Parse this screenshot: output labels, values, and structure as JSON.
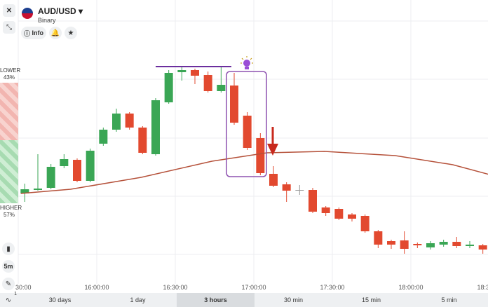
{
  "header": {
    "symbol": "AUD/USD",
    "mode": "Binary",
    "info": "Info"
  },
  "sentiment": {
    "lower_label": "LOWER",
    "lower_value": "43%",
    "higher_label": "HIGHER",
    "higher_value": "57%"
  },
  "toolbar": {
    "timeframe": "5m",
    "badge": "1"
  },
  "periods": [
    "30 days",
    "1 day",
    "3 hours",
    "30 min",
    "15 min",
    "5 min"
  ],
  "active_period": 2,
  "chart_data": {
    "type": "candlestick",
    "xlim": [
      930,
      1110
    ],
    "ylim": [
      0,
      380
    ],
    "xticks": [
      {
        "value": 930,
        "label": "30:00"
      },
      {
        "value": 960,
        "label": "16:00:00"
      },
      {
        "value": 990,
        "label": "16:30:00"
      },
      {
        "value": 1020,
        "label": "17:00:00"
      },
      {
        "value": 1050,
        "label": "17:30:00"
      },
      {
        "value": 1080,
        "label": "18:00:00"
      },
      {
        "value": 1110,
        "label": "18:3"
      }
    ],
    "grid": true,
    "up_color": "#3aa655",
    "down_color": "#e2492f",
    "candles": {
      "x": [
        932.5,
        937.5,
        942.5,
        947.5,
        952.5,
        957.5,
        962.5,
        967.5,
        972.5,
        977.5,
        982.5,
        987.5,
        992.5,
        997.5,
        1002.5,
        1007.5,
        1012.5,
        1017.5,
        1022.5,
        1027.5,
        1032.5,
        1037.5,
        1042.5,
        1047.5,
        1052.5,
        1057.5,
        1062.5,
        1067.5,
        1072.5,
        1077.5,
        1082.5,
        1087.5,
        1092.5,
        1097.5,
        1102.5,
        1107.5
      ],
      "open": [
        124,
        129,
        132,
        163,
        172,
        142,
        195,
        215,
        238,
        218,
        180,
        254,
        297,
        300,
        293,
        270,
        278,
        235,
        203,
        152,
        137,
        129,
        129,
        104,
        102,
        94,
        92,
        70,
        56,
        57,
        52,
        47,
        51,
        55,
        49,
        50
      ],
      "high": [
        138,
        180,
        166,
        180,
        174,
        188,
        218,
        245,
        240,
        220,
        260,
        300,
        304,
        302,
        298,
        305,
        296,
        240,
        210,
        163,
        140,
        136,
        132,
        106,
        104,
        96,
        94,
        72,
        58,
        70,
        54,
        56,
        58,
        62,
        56,
        52
      ],
      "low": [
        112,
        128,
        130,
        160,
        140,
        140,
        192,
        212,
        215,
        180,
        178,
        252,
        285,
        280,
        268,
        268,
        222,
        186,
        150,
        133,
        112,
        122,
        96,
        92,
        86,
        84,
        68,
        46,
        45,
        38,
        46,
        44,
        48,
        46,
        46,
        38
      ],
      "close": [
        130,
        131,
        162,
        173,
        142,
        185,
        215,
        238,
        218,
        182,
        257,
        296,
        300,
        292,
        270,
        279,
        225,
        189,
        153,
        135,
        128,
        129,
        98,
        96,
        88,
        88,
        70,
        51,
        51,
        45,
        50,
        53,
        55,
        49,
        51,
        44
      ]
    },
    "ma": {
      "color": "#b5513a",
      "x": [
        931,
        950,
        977,
        1004,
        1025,
        1047,
        1074,
        1096,
        1111
      ],
      "values": [
        124,
        130,
        147,
        170,
        182,
        184,
        178,
        165,
        150
      ]
    }
  }
}
